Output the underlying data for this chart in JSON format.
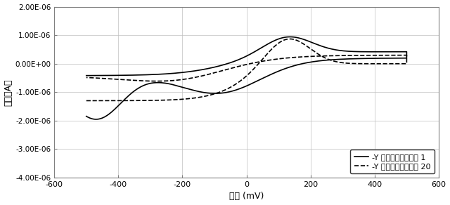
{
  "xlabel": "電位 (mV)",
  "ylabel": "電流（A）",
  "xlim": [
    -600,
    600
  ],
  "ylim": [
    -4e-06,
    2e-06
  ],
  "yticks": [
    -4e-06,
    -3e-06,
    -2e-06,
    -1e-06,
    0.0,
    1e-06,
    2e-06
  ],
  "ytick_labels": [
    "-4.00E-06",
    "-3.00E-06",
    "-2.00E-06",
    "-1.00E-06",
    "0.00E+00",
    "1.00E-06",
    "2.00E-06"
  ],
  "xticks": [
    -600,
    -400,
    -200,
    0,
    200,
    400,
    600
  ],
  "legend_labels": [
    "-Y チャネル走査　　 1",
    "-Y チャネル走査　　 20"
  ],
  "line1_style": "-",
  "line2_style": "--",
  "line_color": "#000000",
  "background_color": "#ffffff",
  "grid_color": "#c0c0c0"
}
